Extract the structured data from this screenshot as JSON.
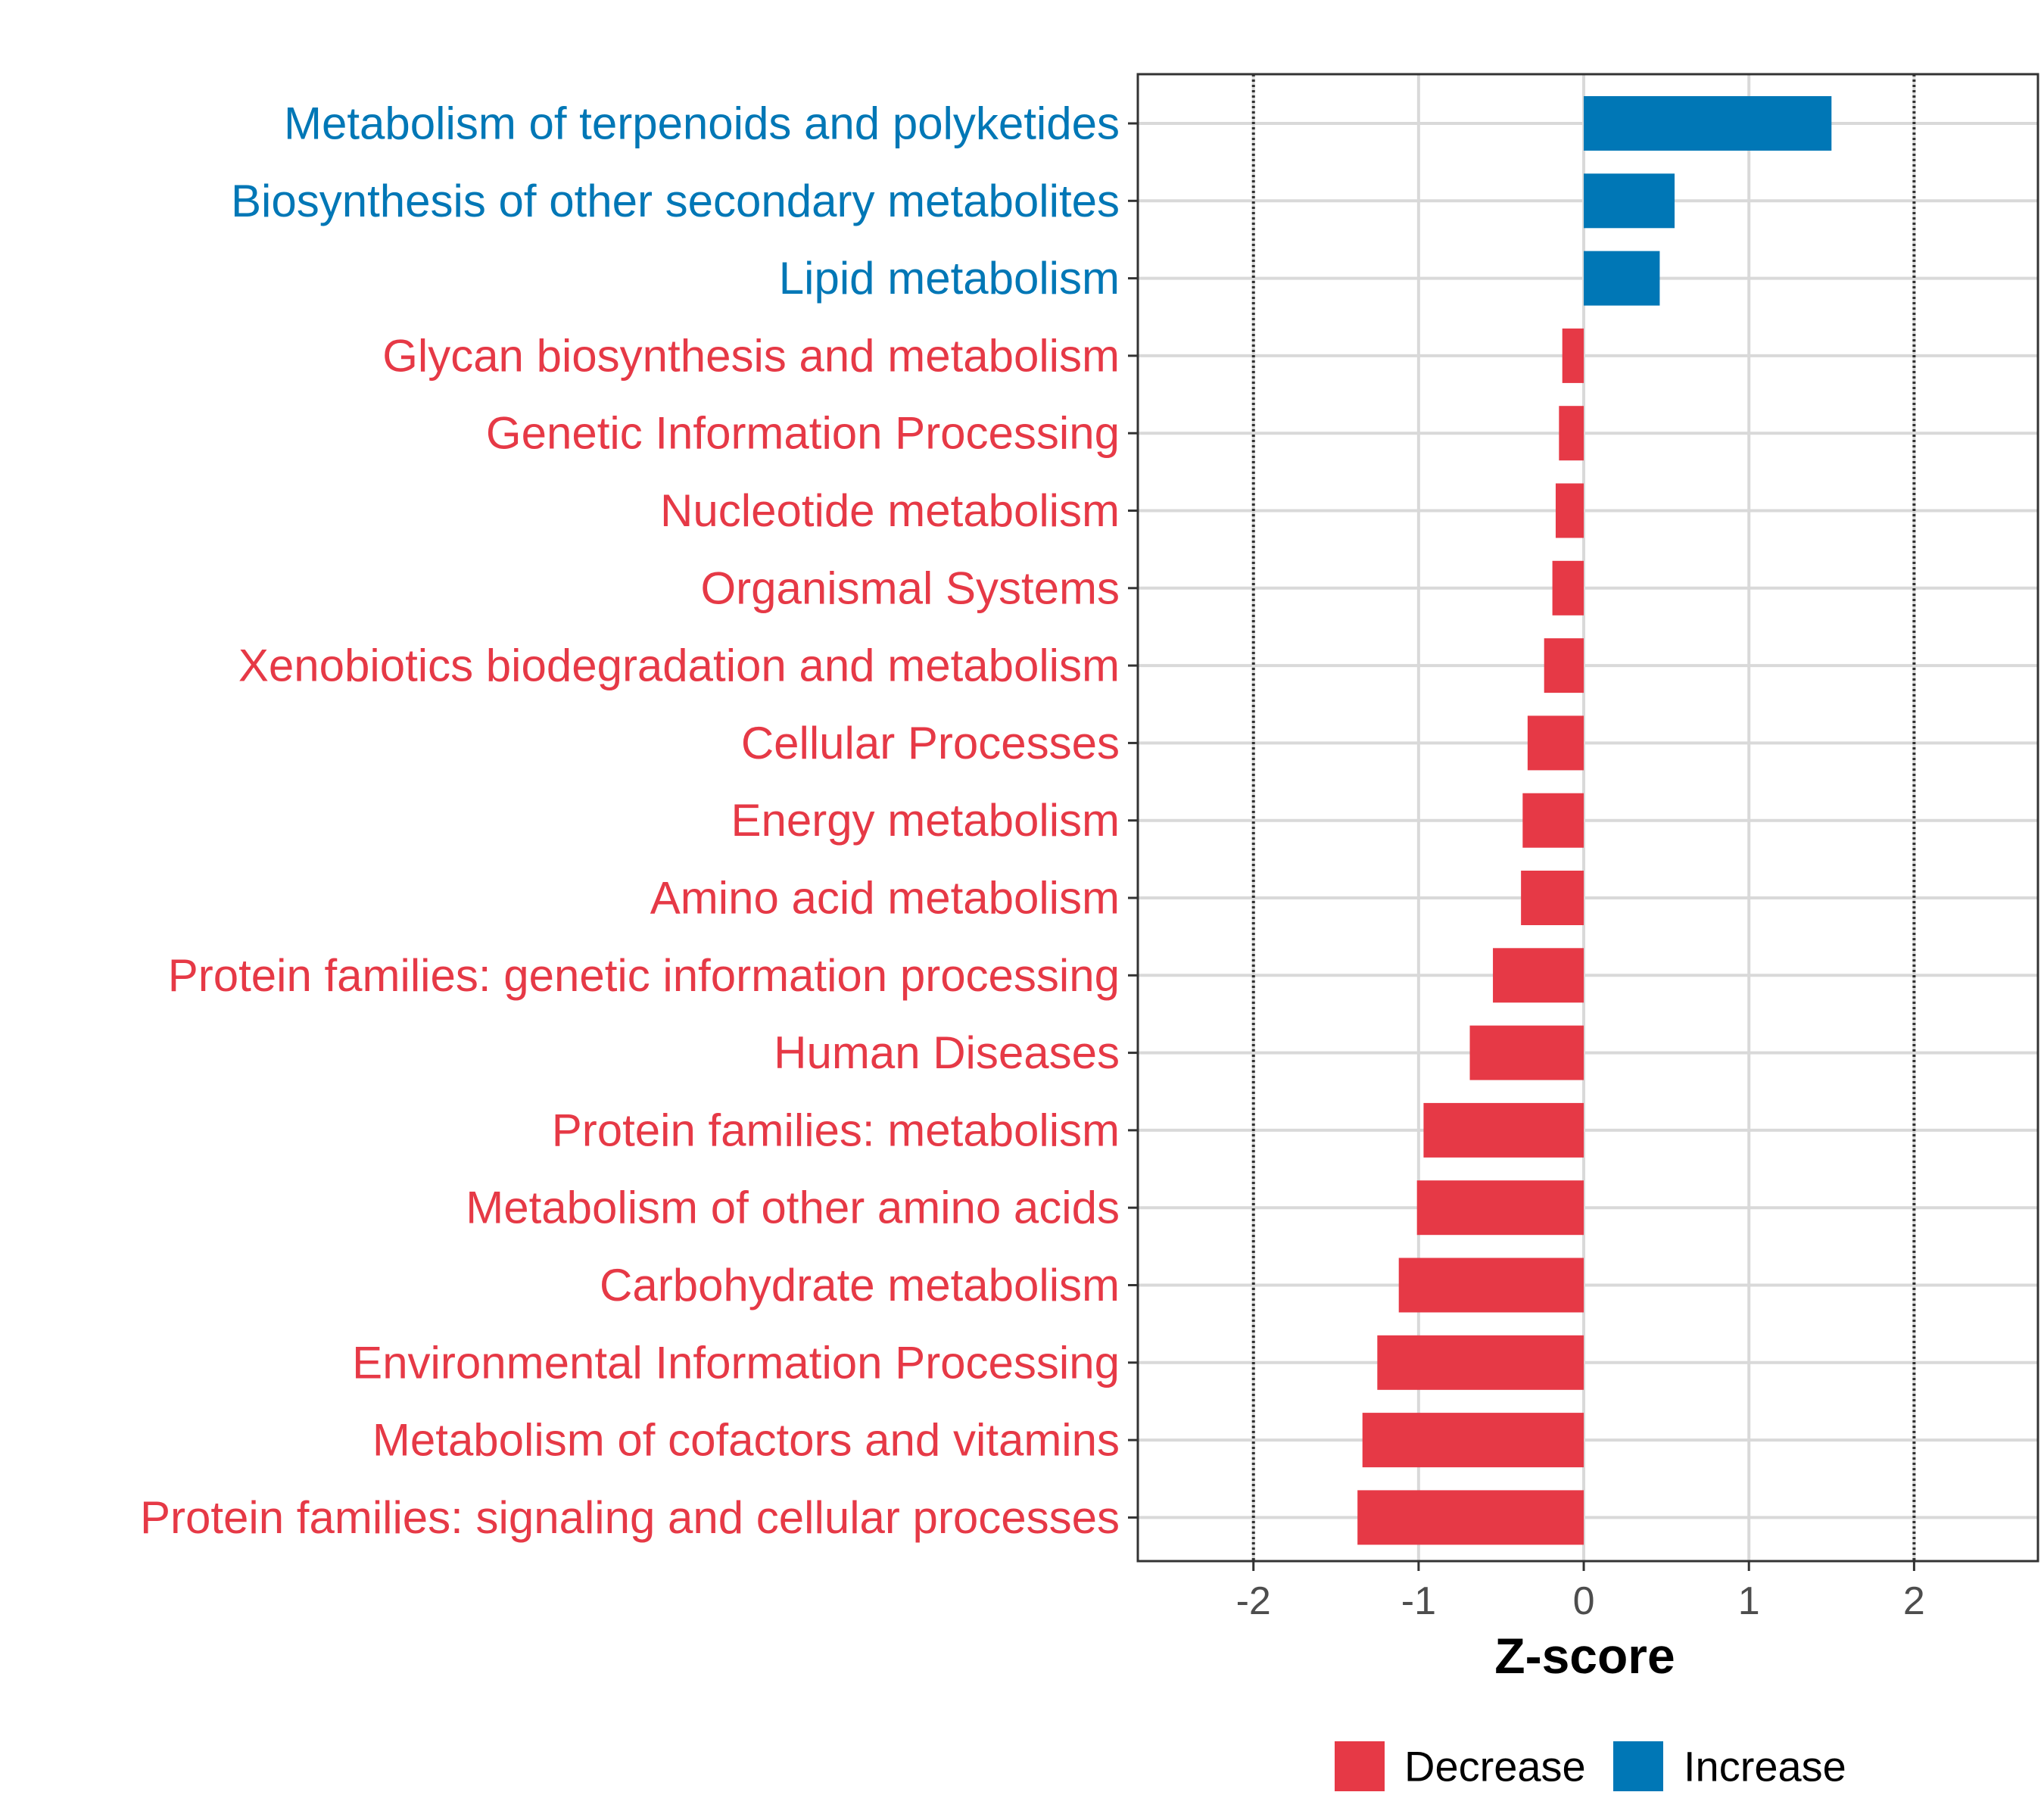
{
  "chart_data": {
    "type": "bar",
    "orientation": "horizontal",
    "title": "",
    "xlabel": "Z-score",
    "ylabel": "",
    "xlim": [
      -2.7,
      2.75
    ],
    "xticks": [
      -2,
      -1,
      0,
      1,
      2
    ],
    "xtick_labels": [
      "-2",
      "-1",
      "0",
      "1",
      "2"
    ],
    "reference_lines": [
      -2,
      2
    ],
    "grid": true,
    "legend_position": "bottom",
    "colors": {
      "Decrease": "#e63946",
      "Increase": "#0077b6"
    },
    "legend": [
      "Decrease",
      "Increase"
    ],
    "categories": [
      "Metabolism of terpenoids and polyketides",
      "Biosynthesis of other secondary metabolites",
      "Lipid metabolism",
      "Glycan biosynthesis and metabolism",
      "Genetic Information Processing",
      "Nucleotide metabolism",
      "Organismal Systems",
      "Xenobiotics biodegradation and metabolism",
      "Cellular Processes",
      "Energy metabolism",
      "Amino acid metabolism",
      "Protein families: genetic information processing",
      "Human Diseases",
      "Protein families: metabolism",
      "Metabolism of other amino acids",
      "Carbohydrate metabolism",
      "Environmental Information Processing",
      "Metabolism of cofactors and vitamins",
      "Protein families: signaling and cellular processes"
    ],
    "values": [
      1.5,
      0.55,
      0.46,
      -0.13,
      -0.15,
      -0.17,
      -0.19,
      -0.24,
      -0.34,
      -0.37,
      -0.38,
      -0.55,
      -0.69,
      -0.97,
      -1.01,
      -1.12,
      -1.25,
      -1.34,
      -1.37
    ],
    "groups": [
      "Increase",
      "Increase",
      "Increase",
      "Decrease",
      "Decrease",
      "Decrease",
      "Decrease",
      "Decrease",
      "Decrease",
      "Decrease",
      "Decrease",
      "Decrease",
      "Decrease",
      "Decrease",
      "Decrease",
      "Decrease",
      "Decrease",
      "Decrease",
      "Decrease"
    ]
  }
}
